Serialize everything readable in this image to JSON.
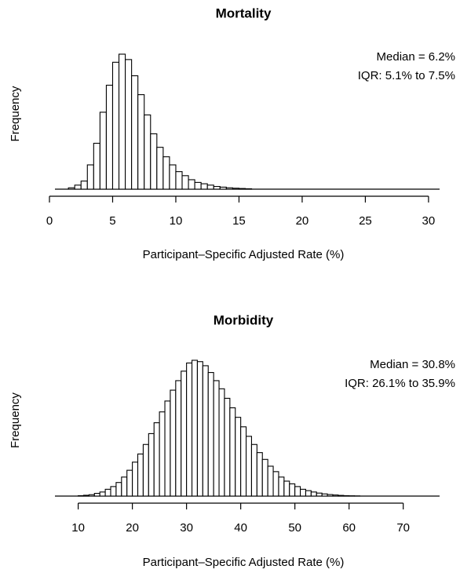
{
  "chart_data": [
    {
      "type": "histogram",
      "title": "Mortality",
      "xlabel": "Participant–Specific Adjusted Rate (%)",
      "ylabel": "Frequency",
      "annotations": [
        "Median = 6.2%",
        "IQR: 5.1% to 7.5%"
      ],
      "bins": [
        1.5,
        2,
        2.5,
        3,
        3.5,
        4,
        4.5,
        5,
        5.5,
        6,
        6.5,
        7,
        7.5,
        8,
        8.5,
        9,
        9.5,
        10,
        10.5,
        11,
        11.5,
        12,
        12.5,
        13,
        13.5,
        14,
        14.5,
        15,
        15.5,
        16
      ],
      "counts": [
        1,
        3,
        6,
        18,
        34,
        57,
        77,
        94,
        100,
        96,
        84,
        70,
        55,
        41,
        31,
        24,
        18,
        13,
        10,
        7,
        5,
        4,
        3,
        2,
        1.5,
        1,
        0.7,
        0.5,
        0.3
      ],
      "color": "#ffffff",
      "edgecolor": "#000000",
      "xlim": [
        0,
        31
      ],
      "xticks": [
        0,
        5,
        10,
        15,
        20,
        25,
        30
      ],
      "ylim": [
        0,
        100
      ]
    },
    {
      "type": "histogram",
      "title": "Morbidity",
      "xlabel": "Participant–Specific Adjusted Rate (%)",
      "ylabel": "Frequency",
      "annotations": [
        "Median = 30.8%",
        "IQR: 26.1% to 35.9%"
      ],
      "bins": [
        10,
        11,
        12,
        13,
        14,
        15,
        16,
        17,
        18,
        19,
        20,
        21,
        22,
        23,
        24,
        25,
        26,
        27,
        28,
        29,
        30,
        31,
        32,
        33,
        34,
        35,
        36,
        37,
        38,
        39,
        40,
        41,
        42,
        43,
        44,
        45,
        46,
        47,
        48,
        49,
        50,
        51,
        52,
        53,
        54,
        55,
        56,
        57,
        58,
        59,
        60,
        61,
        62
      ],
      "counts": [
        0.3,
        0.6,
        1,
        2,
        3,
        5,
        7,
        10,
        14,
        19,
        25,
        31,
        38,
        46,
        54,
        62,
        70,
        78,
        85,
        92,
        98,
        100,
        99,
        96,
        91,
        85,
        79,
        72,
        65,
        58,
        51,
        44,
        38,
        32,
        27,
        22,
        18,
        14,
        11,
        9,
        7,
        5,
        4,
        3,
        2.2,
        1.6,
        1.1,
        0.8,
        0.5,
        0.3,
        0.2,
        0.1
      ],
      "color": "#ffffff",
      "edgecolor": "#000000",
      "xlim": [
        6,
        77
      ],
      "xticks": [
        10,
        20,
        30,
        40,
        50,
        60,
        70
      ],
      "ylim": [
        0,
        100
      ]
    }
  ]
}
